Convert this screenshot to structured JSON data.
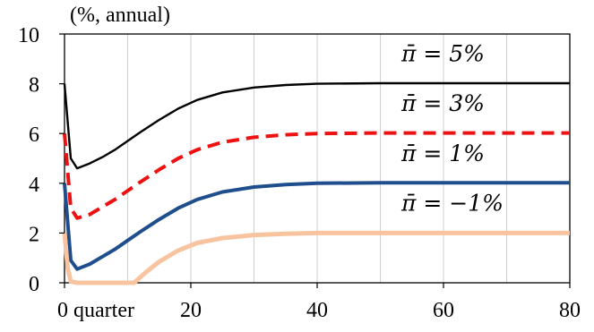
{
  "chart_data": {
    "type": "line",
    "unit_label": "(%, annual)",
    "xlabel": "",
    "ylabel": "",
    "xlim": [
      0,
      80
    ],
    "ylim": [
      0,
      10
    ],
    "x_ticks": [
      {
        "value": 0,
        "label": "0 quarter"
      },
      {
        "value": 20,
        "label": "20"
      },
      {
        "value": 40,
        "label": "40"
      },
      {
        "value": 60,
        "label": "60"
      },
      {
        "value": 80,
        "label": "80"
      }
    ],
    "y_ticks": [
      0,
      2,
      4,
      6,
      8,
      10
    ],
    "grid": "vertical",
    "series": [
      {
        "name": "π̄ = 5%",
        "color": "#000000",
        "dash": "solid",
        "x": [
          0,
          1,
          2,
          4,
          6,
          8,
          10,
          12,
          15,
          18,
          21,
          25,
          30,
          35,
          40,
          50,
          60,
          70,
          80
        ],
        "y": [
          8.0,
          5.0,
          4.6,
          4.8,
          5.05,
          5.35,
          5.7,
          6.05,
          6.55,
          7.0,
          7.35,
          7.65,
          7.85,
          7.95,
          8.0,
          8.02,
          8.02,
          8.02,
          8.02
        ]
      },
      {
        "name": "π̄ = 3%",
        "color": "#ee1111",
        "dash": "dashed",
        "x": [
          0,
          1,
          2,
          4,
          6,
          8,
          10,
          12,
          15,
          18,
          21,
          25,
          30,
          35,
          40,
          50,
          60,
          70,
          80
        ],
        "y": [
          6.0,
          3.0,
          2.6,
          2.75,
          3.05,
          3.35,
          3.7,
          4.05,
          4.55,
          5.0,
          5.35,
          5.65,
          5.85,
          5.95,
          6.0,
          6.02,
          6.02,
          6.02,
          6.02
        ]
      },
      {
        "name": "π̄ = 1%",
        "color": "#1f4e8c",
        "dash": "solid",
        "x": [
          0,
          1,
          2,
          4,
          6,
          8,
          10,
          12,
          15,
          18,
          21,
          25,
          30,
          35,
          40,
          50,
          60,
          70,
          80
        ],
        "y": [
          4.0,
          0.9,
          0.55,
          0.75,
          1.05,
          1.35,
          1.7,
          2.05,
          2.55,
          3.0,
          3.35,
          3.65,
          3.85,
          3.95,
          4.0,
          4.02,
          4.02,
          4.02,
          4.02
        ]
      },
      {
        "name": "π̄ = −1%",
        "color": "#f8c4a0",
        "dash": "solid",
        "x": [
          0,
          0.5,
          1,
          2,
          4,
          6,
          8,
          10,
          11,
          13,
          15,
          18,
          21,
          25,
          30,
          35,
          40,
          50,
          60,
          70,
          80
        ],
        "y": [
          2.0,
          0.6,
          0.05,
          0,
          0,
          0,
          0,
          0,
          0,
          0.45,
          0.85,
          1.3,
          1.6,
          1.8,
          1.92,
          1.97,
          2.0,
          2.0,
          2.0,
          2.0,
          2.0
        ]
      }
    ]
  }
}
